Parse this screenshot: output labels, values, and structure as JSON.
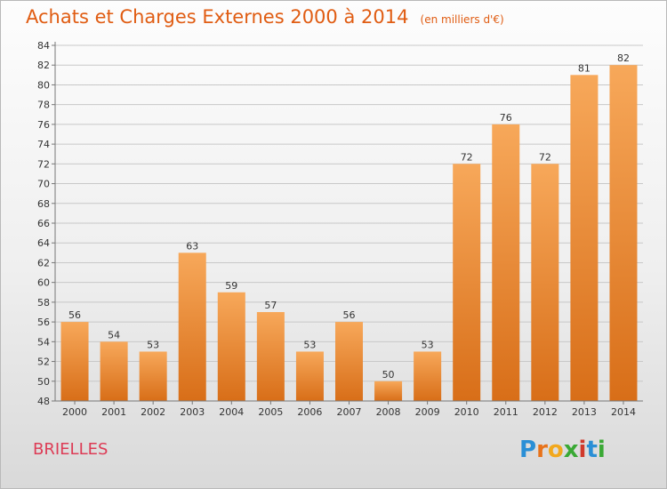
{
  "header": {
    "title": "Achats et Charges Externes 2000 à 2014",
    "unit": "(en milliers d'€)"
  },
  "footer": {
    "location": "BRIELLES",
    "brand": {
      "text": "Proxiti",
      "letters": [
        "P",
        "r",
        "o",
        "x",
        "i",
        "t",
        "i"
      ],
      "colors": [
        "#2a8fd6",
        "#e8731a",
        "#f2a81d",
        "#3aa935",
        "#d0392b",
        "#2a8fd6",
        "#3aa935"
      ]
    }
  },
  "colors": {
    "bar_light": "#f7a85a",
    "bar_dark": "#d86e18",
    "title": "#e05c12",
    "grid": "#c8c8c8"
  },
  "chart_data": {
    "type": "bar",
    "categories": [
      "2000",
      "2001",
      "2002",
      "2003",
      "2004",
      "2005",
      "2006",
      "2007",
      "2008",
      "2009",
      "2010",
      "2011",
      "2012",
      "2013",
      "2014"
    ],
    "values": [
      56,
      54,
      53,
      63,
      59,
      57,
      53,
      56,
      50,
      53,
      72,
      76,
      72,
      81,
      82
    ],
    "ylim": [
      48,
      84
    ],
    "ytick_step": 2,
    "grid": true,
    "data_labels": true
  }
}
